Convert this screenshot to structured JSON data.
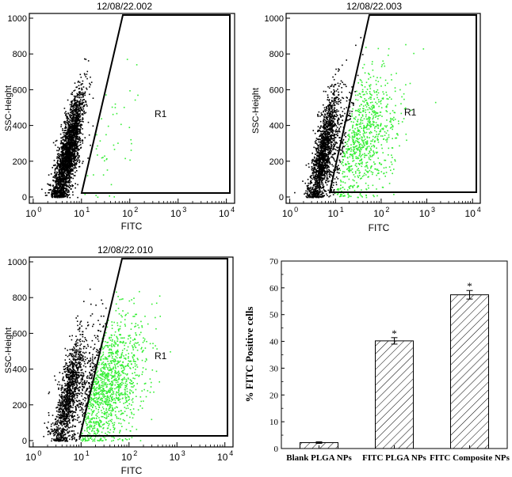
{
  "flow_panels": [
    {
      "title": "12/08/22.002",
      "xlabel": "FITC",
      "ylabel": "SSC-Height",
      "region_label": "R1",
      "y_ticks": [
        "0",
        "200",
        "400",
        "600",
        "800",
        "1000"
      ],
      "x_ticks": [
        {
          "base": "10",
          "exp": "0"
        },
        {
          "base": "10",
          "exp": "1"
        },
        {
          "base": "10",
          "exp": "2"
        },
        {
          "base": "10",
          "exp": "3"
        },
        {
          "base": "10",
          "exp": "4"
        }
      ],
      "gated_fraction": 0.02
    },
    {
      "title": "12/08/22.003",
      "xlabel": "FITC",
      "ylabel": "SSC-Height",
      "region_label": "R1",
      "y_ticks": [
        "0",
        "200",
        "400",
        "600",
        "800",
        "1000"
      ],
      "x_ticks": [
        {
          "base": "10",
          "exp": "0"
        },
        {
          "base": "10",
          "exp": "1"
        },
        {
          "base": "10",
          "exp": "2"
        },
        {
          "base": "10",
          "exp": "3"
        },
        {
          "base": "10",
          "exp": "4"
        }
      ],
      "gated_fraction": 0.4
    },
    {
      "title": "12/08/22.010",
      "xlabel": "FITC",
      "ylabel": "SSC-Height",
      "region_label": "R1",
      "y_ticks": [
        "0",
        "200",
        "400",
        "600",
        "800",
        "1000"
      ],
      "x_ticks": [
        {
          "base": "10",
          "exp": "0"
        },
        {
          "base": "10",
          "exp": "1"
        },
        {
          "base": "10",
          "exp": "2"
        },
        {
          "base": "10",
          "exp": "3"
        },
        {
          "base": "10",
          "exp": "4"
        }
      ],
      "gated_fraction": 0.57
    }
  ],
  "colors": {
    "gated": "#33ee33",
    "ungated": "#000000"
  },
  "chart_data": {
    "type": "bar",
    "categories": [
      "Blank PLGA NPs",
      "FITC PLGA NPs",
      "FITC Composite NPs"
    ],
    "values": [
      2.2,
      40.2,
      57.4
    ],
    "errors": [
      0.3,
      1.2,
      1.6
    ],
    "annotations": [
      "",
      "*",
      "*"
    ],
    "title": "",
    "xlabel": "",
    "ylabel": "% FITC Positive cells",
    "ylim": [
      0,
      70
    ],
    "yticks": [
      "0",
      "10",
      "20",
      "30",
      "40",
      "50",
      "60",
      "70"
    ],
    "grid": false,
    "hatch": "diagonal"
  }
}
